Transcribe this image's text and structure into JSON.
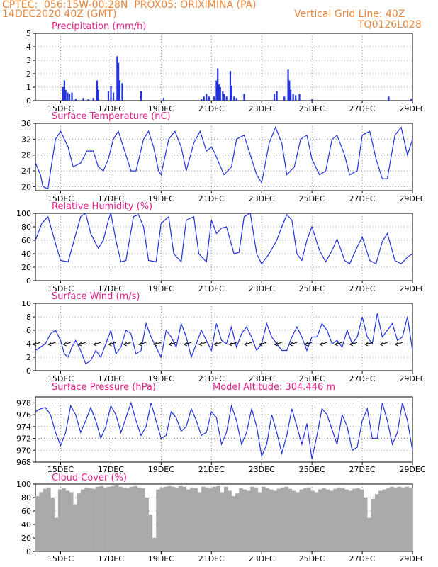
{
  "header": {
    "line1": "CPTEC:  056:15W-00:28N  PROX05: ORIXIMINA (PA)",
    "date": "14DEC2020 40Z (GMT)",
    "grid_note": "Vertical Grid Line: 40Z",
    "code": "TQ0126L028"
  },
  "colors": {
    "header": "#e8863a",
    "title": "#e0208a",
    "series": "#2233dd",
    "cloud": "#aaaaaa"
  },
  "x_days": [
    "15DEC",
    "17DEC",
    "19DEC",
    "21DEC",
    "23DEC",
    "25DEC",
    "27DEC",
    "29DEC"
  ],
  "chart_data": [
    {
      "type": "bar",
      "title": "Precipitation (mm/h)",
      "ylim": [
        0,
        5
      ],
      "yticks": [
        0,
        1,
        2,
        3,
        4,
        5
      ],
      "x_range_days": [
        14.0,
        29.0
      ],
      "bars": [
        [
          15.1,
          1.0
        ],
        [
          15.15,
          1.5
        ],
        [
          15.2,
          0.8
        ],
        [
          15.28,
          0.6
        ],
        [
          15.35,
          0.5
        ],
        [
          15.45,
          0.6
        ],
        [
          15.6,
          0.15
        ],
        [
          15.9,
          0.2
        ],
        [
          16.1,
          0.1
        ],
        [
          16.3,
          0.2
        ],
        [
          16.45,
          1.5
        ],
        [
          16.5,
          0.8
        ],
        [
          16.9,
          0.7
        ],
        [
          17.0,
          1.1
        ],
        [
          17.1,
          0.6
        ],
        [
          17.25,
          3.3
        ],
        [
          17.3,
          2.8
        ],
        [
          17.35,
          1.5
        ],
        [
          17.45,
          1.3
        ],
        [
          18.2,
          0.7
        ],
        [
          19.1,
          0.2
        ],
        [
          20.6,
          0.1
        ],
        [
          20.7,
          0.3
        ],
        [
          20.8,
          0.5
        ],
        [
          20.9,
          0.3
        ],
        [
          21.1,
          0.3
        ],
        [
          21.2,
          1.5
        ],
        [
          21.25,
          2.4
        ],
        [
          21.3,
          1.2
        ],
        [
          21.35,
          1.0
        ],
        [
          21.45,
          0.7
        ],
        [
          21.5,
          0.5
        ],
        [
          21.6,
          0.3
        ],
        [
          21.75,
          2.2
        ],
        [
          21.8,
          1.1
        ],
        [
          21.9,
          0.3
        ],
        [
          22.0,
          0.2
        ],
        [
          22.3,
          0.5
        ],
        [
          23.5,
          0.5
        ],
        [
          23.6,
          0.7
        ],
        [
          23.9,
          0.3
        ],
        [
          24.05,
          2.3
        ],
        [
          24.1,
          1.5
        ],
        [
          24.15,
          0.8
        ],
        [
          24.25,
          0.5
        ],
        [
          24.35,
          0.4
        ],
        [
          24.5,
          0.5
        ],
        [
          25.0,
          0.1
        ],
        [
          28.05,
          0.3
        ],
        [
          28.95,
          0.15
        ]
      ]
    },
    {
      "type": "line",
      "title": "Surface Temperature (nC)",
      "ylim": [
        19,
        36
      ],
      "yticks": [
        20,
        24,
        28,
        32,
        36
      ],
      "x": [
        14.0,
        14.2,
        14.3,
        14.5,
        14.65,
        14.8,
        15.0,
        15.3,
        15.5,
        15.8,
        16.05,
        16.3,
        16.5,
        16.7,
        16.9,
        17.1,
        17.3,
        17.5,
        17.8,
        18.0,
        18.3,
        18.5,
        18.7,
        18.9,
        19.0,
        19.3,
        19.55,
        19.8,
        20.0,
        20.3,
        20.55,
        20.8,
        21.0,
        21.1,
        21.3,
        21.5,
        21.8,
        22.0,
        22.3,
        22.55,
        22.8,
        23.0,
        23.3,
        23.55,
        23.8,
        24.0,
        24.3,
        24.55,
        24.8,
        25.0,
        25.3,
        25.55,
        25.8,
        26.0,
        26.3,
        26.5,
        26.8,
        27.0,
        27.3,
        27.55,
        27.8,
        28.0,
        28.3,
        28.55,
        28.8,
        29.0
      ],
      "values": [
        26,
        23,
        20,
        19.5,
        26,
        32,
        34,
        30,
        25,
        26,
        29,
        29,
        25,
        24,
        27,
        32,
        34,
        30,
        24,
        24,
        32,
        34,
        30,
        24,
        23,
        32,
        34,
        30,
        24,
        31,
        34,
        29,
        30,
        29,
        26,
        23,
        25,
        32,
        33,
        28,
        23,
        21,
        31,
        35,
        31,
        23,
        25,
        32,
        33,
        27,
        23,
        24,
        32,
        33,
        28,
        23,
        24,
        33,
        34,
        27,
        22,
        22,
        33,
        35,
        28,
        32
      ]
    },
    {
      "type": "line",
      "title": "Relative Humidity (%)",
      "ylim": [
        0,
        100
      ],
      "yticks": [
        0,
        20,
        40,
        60,
        80,
        100
      ],
      "x": [
        14.0,
        14.25,
        14.5,
        14.8,
        15.0,
        15.3,
        15.5,
        15.8,
        16.0,
        16.2,
        16.5,
        16.7,
        16.9,
        17.0,
        17.2,
        17.4,
        17.6,
        17.9,
        18.1,
        18.3,
        18.5,
        18.8,
        19.0,
        19.3,
        19.5,
        19.8,
        20.0,
        20.3,
        20.5,
        20.8,
        21.0,
        21.2,
        21.4,
        21.6,
        21.9,
        22.1,
        22.3,
        22.55,
        22.8,
        23.0,
        23.3,
        23.6,
        23.8,
        24.0,
        24.2,
        24.4,
        24.6,
        24.8,
        25.0,
        25.3,
        25.55,
        25.8,
        26.0,
        26.3,
        26.5,
        26.8,
        27.0,
        27.3,
        27.55,
        27.8,
        28.0,
        28.3,
        28.55,
        28.8,
        29.0
      ],
      "values": [
        60,
        85,
        95,
        55,
        30,
        28,
        55,
        95,
        100,
        70,
        48,
        60,
        90,
        100,
        60,
        28,
        30,
        95,
        98,
        80,
        30,
        28,
        85,
        95,
        40,
        28,
        90,
        95,
        40,
        28,
        90,
        70,
        78,
        80,
        40,
        42,
        95,
        100,
        40,
        25,
        40,
        60,
        80,
        98,
        90,
        40,
        30,
        60,
        80,
        45,
        28,
        45,
        62,
        30,
        25,
        50,
        65,
        30,
        25,
        58,
        70,
        30,
        25,
        35,
        40
      ]
    },
    {
      "type": "line",
      "title": "Surface Wind (m/s)",
      "ylim": [
        0,
        10
      ],
      "yticks": [
        0,
        2,
        4,
        6,
        8,
        10
      ],
      "x": [
        14.0,
        14.2,
        14.4,
        14.6,
        14.8,
        15.0,
        15.15,
        15.3,
        15.45,
        15.6,
        15.8,
        16.0,
        16.2,
        16.4,
        16.6,
        16.8,
        17.0,
        17.2,
        17.4,
        17.6,
        17.8,
        18.0,
        18.2,
        18.4,
        18.6,
        18.8,
        19.0,
        19.2,
        19.4,
        19.6,
        19.8,
        20.0,
        20.2,
        20.4,
        20.6,
        20.8,
        21.0,
        21.2,
        21.4,
        21.6,
        21.8,
        22.0,
        22.2,
        22.4,
        22.6,
        22.8,
        23.0,
        23.2,
        23.4,
        23.6,
        23.8,
        24.0,
        24.2,
        24.4,
        24.6,
        24.8,
        25.0,
        25.2,
        25.4,
        25.6,
        25.8,
        26.0,
        26.2,
        26.4,
        26.6,
        26.8,
        27.0,
        27.2,
        27.4,
        27.6,
        27.8,
        28.0,
        28.2,
        28.4,
        28.6,
        28.8,
        29.0
      ],
      "values": [
        3,
        3.5,
        4,
        5.5,
        6,
        4.5,
        2.5,
        2,
        3.5,
        4.5,
        3,
        1,
        1.5,
        3,
        2,
        4,
        6,
        2.5,
        3.5,
        6,
        5.5,
        2.5,
        3,
        7,
        5,
        3.5,
        2,
        6,
        5,
        3.5,
        7,
        5,
        2,
        4,
        6,
        4.5,
        3,
        7,
        4.5,
        4,
        6.5,
        3.5,
        5.5,
        6.5,
        5,
        3,
        4,
        7,
        5,
        4,
        3,
        3,
        5,
        6.5,
        5,
        3,
        5,
        5,
        7,
        6,
        4,
        4.5,
        3.5,
        6,
        4,
        5,
        8,
        5,
        4,
        8.5,
        5,
        6,
        7,
        4.5,
        5,
        8,
        3
      ]
    },
    {
      "type": "line",
      "title": "Surface Pressure (hPa)",
      "annotation": "Model Altitude: 304.446 m",
      "ylim": [
        968,
        979
      ],
      "yticks": [
        968,
        970,
        972,
        974,
        976,
        978
      ],
      "x": [
        14.0,
        14.2,
        14.4,
        14.6,
        14.8,
        15.0,
        15.2,
        15.4,
        15.6,
        15.8,
        16.0,
        16.2,
        16.4,
        16.6,
        16.8,
        17.0,
        17.2,
        17.4,
        17.6,
        17.8,
        18.0,
        18.2,
        18.4,
        18.6,
        18.8,
        19.0,
        19.2,
        19.4,
        19.6,
        19.8,
        20.0,
        20.2,
        20.4,
        20.6,
        20.8,
        21.0,
        21.2,
        21.4,
        21.6,
        21.8,
        22.0,
        22.2,
        22.4,
        22.6,
        22.8,
        23.0,
        23.2,
        23.4,
        23.6,
        23.8,
        24.0,
        24.2,
        24.4,
        24.6,
        24.8,
        25.0,
        25.2,
        25.4,
        25.6,
        25.8,
        26.0,
        26.2,
        26.4,
        26.6,
        26.8,
        27.0,
        27.2,
        27.4,
        27.6,
        27.8,
        28.0,
        28.2,
        28.4,
        28.6,
        28.8,
        29.0
      ],
      "values": [
        976.5,
        977,
        977.2,
        976,
        973,
        970.8,
        973,
        977.5,
        976,
        973,
        975,
        977.2,
        975,
        972,
        974,
        977.5,
        976,
        973,
        975.5,
        978,
        975,
        972.5,
        974,
        978,
        975,
        972,
        972.5,
        976.5,
        975.5,
        973.2,
        974,
        977,
        975,
        972.5,
        973,
        976.5,
        975.5,
        971,
        973,
        977.5,
        975,
        971,
        973,
        977,
        974,
        969,
        971,
        976,
        973,
        969.5,
        972.5,
        977,
        974,
        971,
        974.5,
        968.5,
        972.5,
        977,
        976,
        973.5,
        971,
        976,
        974,
        970,
        970.5,
        975,
        977,
        972,
        972,
        978,
        975,
        971,
        973,
        978,
        975,
        970
      ]
    },
    {
      "type": "bar",
      "title": "Cloud Cover (%)",
      "ylim": [
        0,
        100
      ],
      "yticks": [
        0,
        20,
        40,
        60,
        80,
        100
      ],
      "x_range_days": [
        14.0,
        29.0
      ],
      "x": [
        14.0,
        14.15,
        14.3,
        14.45,
        14.6,
        14.75,
        14.9,
        15.05,
        15.2,
        15.35,
        15.5,
        15.65,
        15.8,
        15.95,
        16.1,
        16.25,
        16.4,
        16.55,
        16.7,
        16.85,
        17.0,
        17.15,
        17.3,
        17.45,
        17.6,
        17.75,
        17.9,
        18.05,
        18.2,
        18.35,
        18.5,
        18.65,
        18.8,
        18.95,
        19.1,
        19.25,
        19.4,
        19.55,
        19.7,
        19.85,
        20.0,
        20.15,
        20.3,
        20.45,
        20.6,
        20.75,
        20.9,
        21.05,
        21.2,
        21.35,
        21.5,
        21.65,
        21.8,
        21.95,
        22.1,
        22.25,
        22.4,
        22.55,
        22.7,
        22.85,
        23.0,
        23.15,
        23.3,
        23.45,
        23.6,
        23.75,
        23.9,
        24.05,
        24.2,
        24.35,
        24.5,
        24.65,
        24.8,
        24.95,
        25.1,
        25.25,
        25.4,
        25.55,
        25.7,
        25.85,
        26.0,
        26.15,
        26.3,
        26.45,
        26.6,
        26.75,
        26.9,
        27.05,
        27.2,
        27.35,
        27.5,
        27.65,
        27.8,
        27.95,
        28.1,
        28.25,
        28.4,
        28.55,
        28.7,
        28.85
      ],
      "values": [
        82,
        88,
        93,
        95,
        80,
        50,
        92,
        94,
        90,
        88,
        70,
        86,
        92,
        95,
        94,
        93,
        96,
        97,
        95,
        96,
        97,
        98,
        96,
        95,
        94,
        96,
        97,
        95,
        94,
        80,
        55,
        20,
        92,
        95,
        96,
        97,
        96,
        95,
        97,
        96,
        92,
        95,
        94,
        88,
        96,
        95,
        94,
        96,
        97,
        88,
        96,
        90,
        82,
        86,
        94,
        92,
        90,
        96,
        95,
        88,
        96,
        94,
        92,
        90,
        93,
        95,
        96,
        93,
        90,
        88,
        92,
        94,
        95,
        90,
        88,
        92,
        94,
        92,
        90,
        93,
        95,
        94,
        92,
        90,
        93,
        94,
        92,
        80,
        50,
        78,
        85,
        90,
        92,
        94,
        96,
        95,
        96,
        95,
        96,
        95
      ]
    }
  ]
}
